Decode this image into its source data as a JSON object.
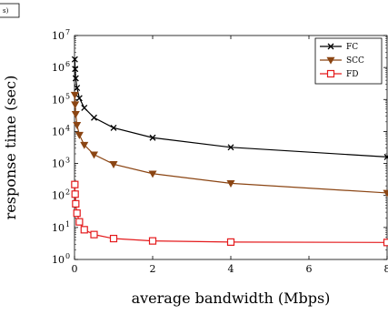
{
  "corner_label": "s)",
  "chart_data": {
    "type": "line",
    "xlabel": "average bandwidth (Mbps)",
    "ylabel": "response time (sec)",
    "xlim": [
      0,
      8
    ],
    "ylim": [
      1,
      10000000
    ],
    "yscale": "log",
    "x_ticks": [
      {
        "value": 0,
        "label": "0"
      },
      {
        "value": 2,
        "label": "2"
      },
      {
        "value": 4,
        "label": "4"
      },
      {
        "value": 6,
        "label": "6"
      },
      {
        "value": 8,
        "label": "8"
      }
    ],
    "y_ticks": [
      {
        "value": 1,
        "base": "10",
        "exp": "0"
      },
      {
        "value": 10,
        "base": "10",
        "exp": "1"
      },
      {
        "value": 100,
        "base": "10",
        "exp": "2"
      },
      {
        "value": 1000,
        "base": "10",
        "exp": "3"
      },
      {
        "value": 10000,
        "base": "10",
        "exp": "4"
      },
      {
        "value": 100000,
        "base": "10",
        "exp": "5"
      },
      {
        "value": 1000000,
        "base": "10",
        "exp": "6"
      },
      {
        "value": 10000000,
        "base": "10",
        "exp": "7"
      }
    ],
    "grid": false,
    "legend_position": "top-right",
    "series": [
      {
        "name": "FC",
        "color": "#000000",
        "marker": "x",
        "x": [
          0.008,
          0.016,
          0.031,
          0.063,
          0.125,
          0.25,
          0.5,
          1,
          2,
          4,
          8
        ],
        "y": [
          1800000,
          900000,
          460000,
          230000,
          110000,
          55000,
          27000,
          13000,
          6400,
          3200,
          1600
        ]
      },
      {
        "name": "SCC",
        "color": "#8b4513",
        "marker": "triangle-down",
        "x": [
          0.008,
          0.016,
          0.031,
          0.063,
          0.125,
          0.25,
          0.5,
          1,
          2,
          4,
          8
        ],
        "y": [
          140000,
          70000,
          35000,
          16000,
          7800,
          3800,
          1900,
          950,
          480,
          240,
          120
        ]
      },
      {
        "name": "FD",
        "color": "#e41a1c",
        "marker": "square",
        "x": [
          0.008,
          0.016,
          0.031,
          0.063,
          0.125,
          0.25,
          0.5,
          1,
          2,
          4,
          8
        ],
        "y": [
          220,
          110,
          55,
          28,
          15,
          8.5,
          6,
          4.5,
          3.8,
          3.5,
          3.4
        ]
      }
    ]
  }
}
